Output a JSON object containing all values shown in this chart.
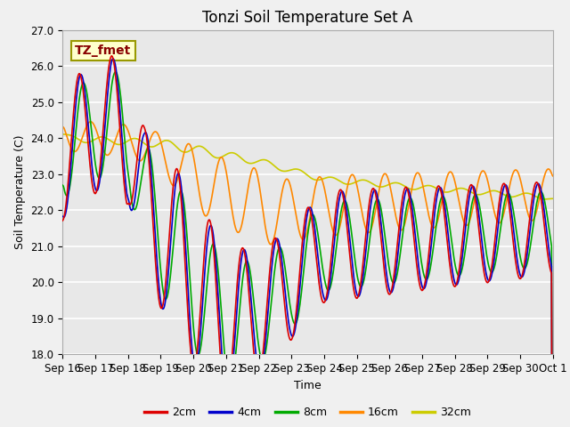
{
  "title": "Tonzi Soil Temperature Set A",
  "xlabel": "Time",
  "ylabel": "Soil Temperature (C)",
  "annotation": "TZ_fmet",
  "ylim": [
    18.0,
    27.0
  ],
  "yticks": [
    18.0,
    19.0,
    20.0,
    21.0,
    22.0,
    23.0,
    24.0,
    25.0,
    26.0,
    27.0
  ],
  "xtick_labels": [
    "Sep 16",
    "Sep 17",
    "Sep 18",
    "Sep 19",
    "Sep 20",
    "Sep 21",
    "Sep 22",
    "Sep 23",
    "Sep 24",
    "Sep 25",
    "Sep 26",
    "Sep 27",
    "Sep 28",
    "Sep 29",
    "Sep 30",
    "Oct 1"
  ],
  "legend_labels": [
    "2cm",
    "4cm",
    "8cm",
    "16cm",
    "32cm"
  ],
  "line_colors": [
    "#dd0000",
    "#0000cc",
    "#00aa00",
    "#ff8800",
    "#cccc00"
  ],
  "bg_color": "#e8e8e8",
  "title_fontsize": 12,
  "label_fontsize": 9,
  "tick_fontsize": 8.5,
  "legend_fontsize": 9
}
